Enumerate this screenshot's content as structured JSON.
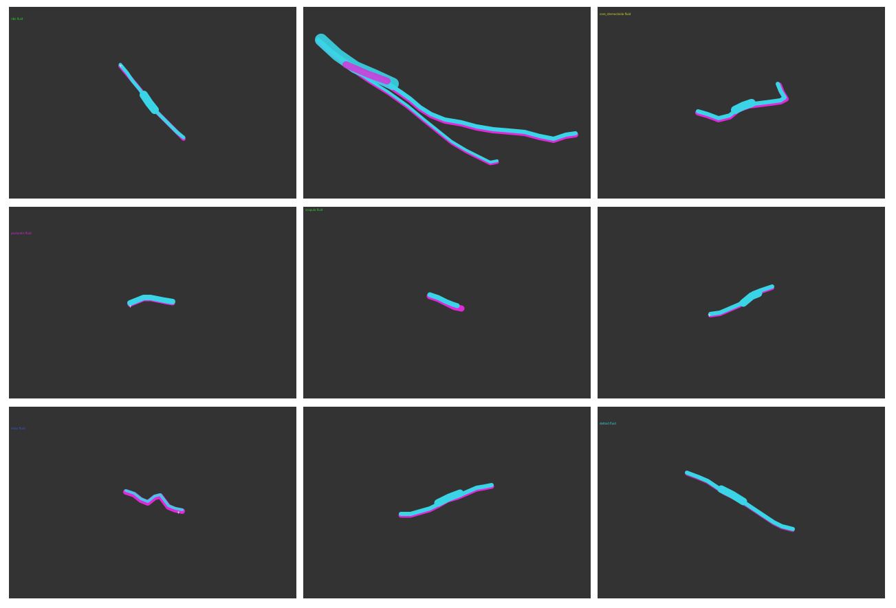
{
  "colors": {
    "background": "#ffffff",
    "panel_background": "#333333",
    "stroke_primary": "#3ad4e6",
    "stroke_secondary": "#e02ad8"
  },
  "panels": [
    {
      "label": "ribs fluid",
      "label_color": "#2fd12f"
    },
    {
      "label": "",
      "label_color": "#e0203a"
    },
    {
      "label": "core_sternocleido fluid",
      "label_color": "#d8d82a"
    },
    {
      "label": "pectoralis fluid",
      "label_color": "#d02ad0"
    },
    {
      "label": "scapula fluid",
      "label_color": "#2fd12f"
    },
    {
      "label": "",
      "label_color": "#e0203a"
    },
    {
      "label": "mass fluid",
      "label_color": "#3a5ae0"
    },
    {
      "label": "",
      "label_color": "#c0202a"
    },
    {
      "label": "deltoid fluid",
      "label_color": "#3ad4e6"
    }
  ]
}
